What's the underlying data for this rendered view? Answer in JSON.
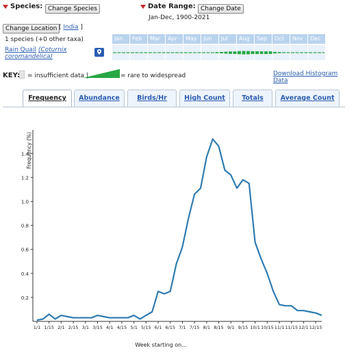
{
  "header": {
    "species_label": "Species:",
    "change_species_button": "Change Species",
    "date_range_label": "Date Range:",
    "change_date_button": "Change Date",
    "date_range_value": "Jan-Dec, 1900-2021",
    "change_location_button": "Change Location",
    "location_bracket_open": "[",
    "location_link": "India",
    "location_bracket_close": "]",
    "species_count": "1 species (+0 other taxa)"
  },
  "months": [
    "Jan",
    "Feb",
    "Mar",
    "Apr",
    "May",
    "Jun",
    "Jul",
    "Aug",
    "Sep",
    "Oct",
    "Nov",
    "Dec"
  ],
  "species_row": {
    "name_common": "Rain Quail",
    "name_scientific": "(Coturnix coromandelica)",
    "map_icon": "map-pin-icon"
  },
  "key": {
    "key_label": "KEY:",
    "insufficient_text": "= insufficient data |",
    "rare_text": "= rare to widespread",
    "download_link": "Download Histogram Data"
  },
  "tabs": [
    {
      "label": "Frequency",
      "active": true
    },
    {
      "label": "Abundance",
      "active": false
    },
    {
      "label": "Birds/Hr",
      "active": false
    },
    {
      "label": "High Count",
      "active": false
    },
    {
      "label": "Totals",
      "active": false
    },
    {
      "label": "Average Count",
      "active": false
    }
  ],
  "colors": {
    "line": "#2f7bb0",
    "bar_green": "#27a844",
    "month_header": "#b9d3ee"
  },
  "chart_data": {
    "type": "line",
    "ylabel": "Frequency (%)",
    "xlabel": "Week starting on...",
    "ylim": [
      0,
      1.55
    ],
    "yticks": [
      0.2,
      0.4,
      0.6,
      0.8,
      1.0,
      1.2,
      1.4
    ],
    "xticks": [
      "1/1",
      "1/15",
      "2/1",
      "2/15",
      "3/1",
      "3/15",
      "4/1",
      "4/15",
      "5/1",
      "5/15",
      "6/1",
      "6/15",
      "7/1",
      "7/15",
      "8/1",
      "8/15",
      "9/1",
      "9/15",
      "10/1",
      "10/15",
      "11/1",
      "11/15",
      "12/1",
      "12/15"
    ],
    "x": [
      "1/1",
      "1/8",
      "1/15",
      "1/22",
      "2/1",
      "2/8",
      "2/15",
      "2/22",
      "3/1",
      "3/8",
      "3/15",
      "3/22",
      "4/1",
      "4/8",
      "4/15",
      "4/22",
      "5/1",
      "5/8",
      "5/15",
      "5/22",
      "6/1",
      "6/8",
      "6/15",
      "6/22",
      "7/1",
      "7/8",
      "7/15",
      "7/22",
      "8/1",
      "8/8",
      "8/15",
      "8/22",
      "9/1",
      "9/8",
      "9/15",
      "9/22",
      "10/1",
      "10/8",
      "10/15",
      "10/22",
      "11/1",
      "11/8",
      "11/15",
      "11/22",
      "12/1",
      "12/8",
      "12/15",
      "12/22"
    ],
    "values": [
      0.01,
      0.02,
      0.06,
      0.02,
      0.05,
      0.04,
      0.03,
      0.03,
      0.03,
      0.03,
      0.05,
      0.04,
      0.03,
      0.03,
      0.03,
      0.03,
      0.05,
      0.02,
      0.05,
      0.08,
      0.25,
      0.23,
      0.25,
      0.48,
      0.62,
      0.86,
      1.06,
      1.11,
      1.37,
      1.52,
      1.46,
      1.26,
      1.22,
      1.11,
      1.18,
      1.15,
      0.66,
      0.52,
      0.4,
      0.25,
      0.14,
      0.13,
      0.13,
      0.09,
      0.09,
      0.08,
      0.07,
      0.05
    ]
  }
}
